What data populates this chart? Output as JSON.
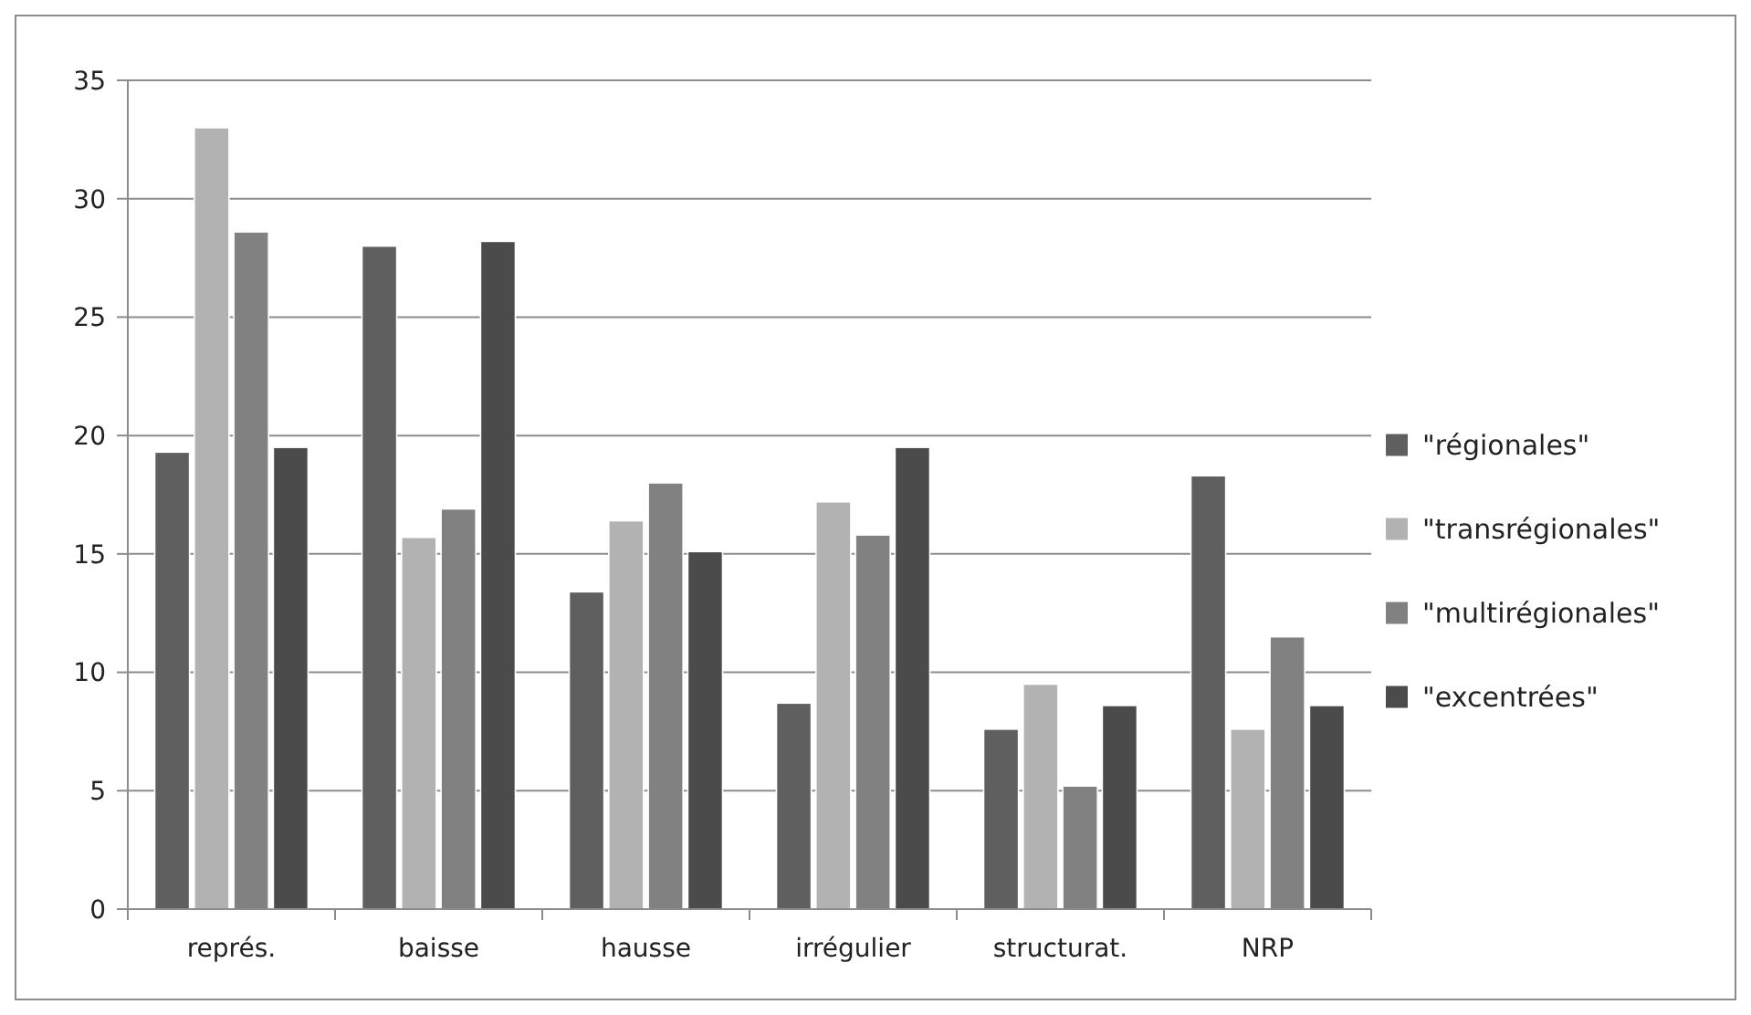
{
  "chart_data": {
    "type": "bar",
    "categories": [
      "représ.",
      "baisse",
      "hausse",
      "irrégulier",
      "structurat.",
      "NRP"
    ],
    "series": [
      {
        "name": "\"régionales\"",
        "color": "#5f5f5f",
        "values": [
          19.3,
          28.0,
          13.4,
          8.7,
          7.6,
          18.3
        ]
      },
      {
        "name": "\"transrégionales\"",
        "color": "#b2b2b2",
        "values": [
          33.0,
          15.7,
          16.4,
          17.2,
          9.5,
          7.6
        ]
      },
      {
        "name": "\"multirégionales\"",
        "color": "#818181",
        "values": [
          28.6,
          16.9,
          18.0,
          15.8,
          5.2,
          11.5
        ]
      },
      {
        "name": "\"excentrées\"",
        "color": "#4b4b4b",
        "values": [
          19.5,
          28.2,
          15.1,
          19.5,
          8.6,
          8.6
        ]
      }
    ],
    "ylim": [
      0,
      35
    ],
    "yticks": [
      0,
      5,
      10,
      15,
      20,
      25,
      30,
      35
    ],
    "grid": "y",
    "legend": "right"
  }
}
